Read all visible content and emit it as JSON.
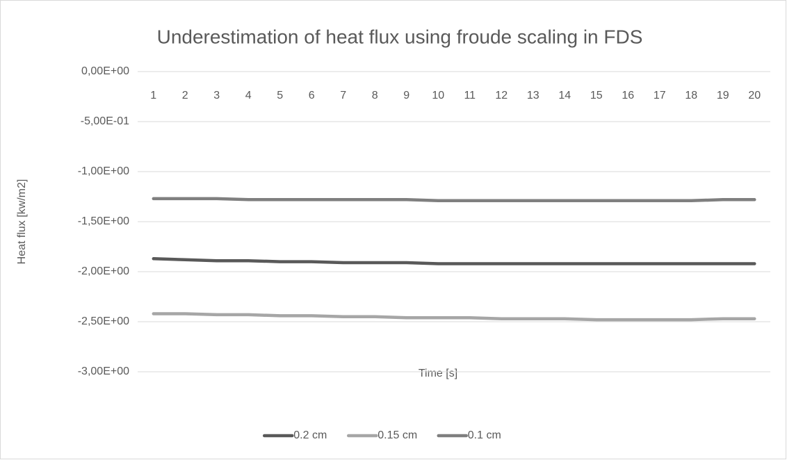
{
  "chart_data": {
    "type": "line",
    "title": "Underestimation of heat flux using froude scaling in FDS",
    "x_label": "Time [s]",
    "y_label": "Heat flux [kw/m2]",
    "categories": [
      "1",
      "2",
      "3",
      "4",
      "5",
      "6",
      "7",
      "8",
      "9",
      "10",
      "11",
      "12",
      "13",
      "14",
      "15",
      "16",
      "17",
      "18",
      "19",
      "20"
    ],
    "series": [
      {
        "name": "0.2 cm",
        "color": "#595959",
        "values": [
          -1.87,
          -1.88,
          -1.89,
          -1.89,
          -1.9,
          -1.9,
          -1.91,
          -1.91,
          -1.91,
          -1.92,
          -1.92,
          -1.92,
          -1.92,
          -1.92,
          -1.92,
          -1.92,
          -1.92,
          -1.92,
          -1.92,
          -1.92
        ]
      },
      {
        "name": "0.15 cm",
        "color": "#a6a6a6",
        "values": [
          -2.42,
          -2.42,
          -2.43,
          -2.43,
          -2.44,
          -2.44,
          -2.45,
          -2.45,
          -2.46,
          -2.46,
          -2.46,
          -2.47,
          -2.47,
          -2.47,
          -2.48,
          -2.48,
          -2.48,
          -2.48,
          -2.47,
          -2.47
        ]
      },
      {
        "name": "0.1 cm",
        "color": "#7f7f7f",
        "values": [
          -1.27,
          -1.27,
          -1.27,
          -1.28,
          -1.28,
          -1.28,
          -1.28,
          -1.28,
          -1.28,
          -1.29,
          -1.29,
          -1.29,
          -1.29,
          -1.29,
          -1.29,
          -1.29,
          -1.29,
          -1.29,
          -1.28,
          -1.28
        ]
      }
    ],
    "ylim": [
      -3,
      0
    ],
    "yticks": [
      {
        "value": 0,
        "label": "0,00E+00"
      },
      {
        "value": -0.5,
        "label": "-5,00E-01"
      },
      {
        "value": -1,
        "label": "-1,00E+00"
      },
      {
        "value": -1.5,
        "label": "-1,50E+00"
      },
      {
        "value": -2,
        "label": "-2,00E+00"
      },
      {
        "value": -2.5,
        "label": "-2,50E+00"
      },
      {
        "value": -3,
        "label": "-3,00E+00"
      }
    ],
    "grid": true,
    "legend": "bottom"
  }
}
